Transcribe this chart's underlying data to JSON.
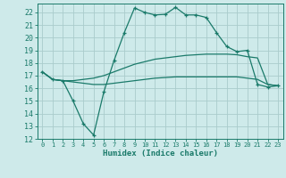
{
  "xlabel": "Humidex (Indice chaleur)",
  "bg_color": "#ceeaea",
  "grid_color": "#aacccc",
  "line_color": "#1a7a6a",
  "xlim": [
    -0.5,
    23.5
  ],
  "ylim": [
    12,
    22.7
  ],
  "xticks": [
    0,
    1,
    2,
    3,
    4,
    5,
    6,
    7,
    8,
    9,
    10,
    11,
    12,
    13,
    14,
    15,
    16,
    17,
    18,
    19,
    20,
    21,
    22,
    23
  ],
  "yticks": [
    12,
    13,
    14,
    15,
    16,
    17,
    18,
    19,
    20,
    21,
    22
  ],
  "curve1_x": [
    0,
    1,
    2,
    3,
    4,
    5,
    6,
    7,
    8,
    9,
    10,
    11,
    12,
    13,
    14,
    15,
    16,
    17,
    18,
    19,
    20,
    21,
    22,
    23
  ],
  "curve1_y": [
    17.3,
    16.7,
    16.6,
    15.0,
    13.2,
    12.3,
    15.7,
    18.2,
    20.4,
    22.35,
    22.0,
    21.8,
    21.85,
    22.4,
    21.8,
    21.8,
    21.6,
    20.4,
    19.3,
    18.9,
    19.0,
    16.3,
    16.1,
    16.2
  ],
  "curve2_x": [
    0,
    1,
    2,
    3,
    4,
    5,
    6,
    7,
    8,
    9,
    10,
    11,
    12,
    13,
    14,
    15,
    16,
    17,
    18,
    19,
    20,
    21,
    22,
    23
  ],
  "curve2_y": [
    17.3,
    16.7,
    16.6,
    16.6,
    16.7,
    16.8,
    17.0,
    17.3,
    17.6,
    17.9,
    18.1,
    18.3,
    18.4,
    18.5,
    18.6,
    18.65,
    18.7,
    18.7,
    18.7,
    18.65,
    18.5,
    18.4,
    16.3,
    16.2
  ],
  "curve3_x": [
    0,
    1,
    2,
    3,
    4,
    5,
    6,
    7,
    8,
    9,
    10,
    11,
    12,
    13,
    14,
    15,
    16,
    17,
    18,
    19,
    20,
    21,
    22,
    23
  ],
  "curve3_y": [
    17.3,
    16.7,
    16.6,
    16.5,
    16.4,
    16.3,
    16.3,
    16.4,
    16.5,
    16.6,
    16.7,
    16.8,
    16.85,
    16.9,
    16.9,
    16.9,
    16.9,
    16.9,
    16.9,
    16.9,
    16.8,
    16.7,
    16.3,
    16.2
  ]
}
